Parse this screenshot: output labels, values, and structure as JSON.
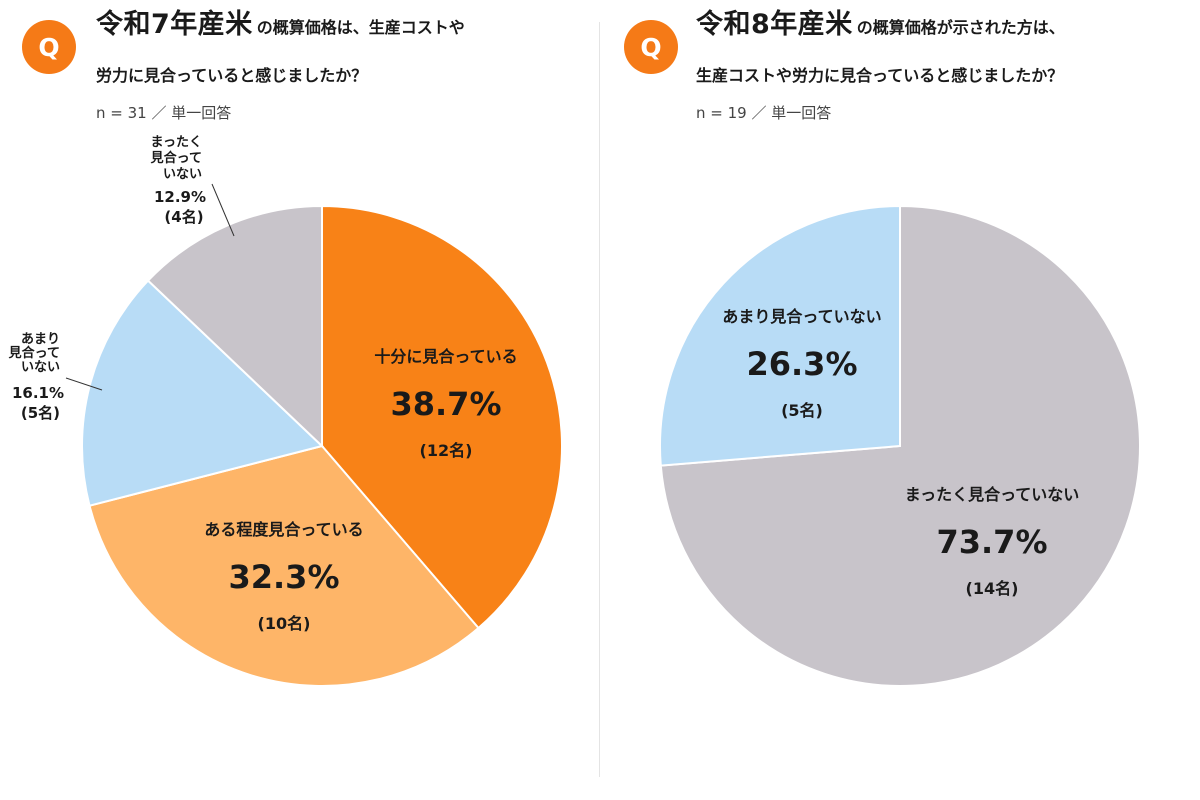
{
  "left": {
    "badge": "Q",
    "title_emph": "令和7年産米",
    "title_rest": "の概算価格は、生産コストや",
    "title_line2": "労力に見合っていると感じましたか？",
    "meta": "n = 31 ／ 単一回答"
  },
  "right": {
    "badge": "Q",
    "title_emph": "令和8年産米",
    "title_rest": "の概算価格が示された方は、",
    "title_line2": "生産コストや労力に見合っていると感じましたか？",
    "meta": "n = 19 ／ 単一回答"
  },
  "chart_data": [
    {
      "type": "pie",
      "title": "",
      "slices": [
        {
          "label": "十分に見合っている",
          "value": 38.7,
          "pct_text": "38.7%",
          "count_text": "(12名)",
          "color": "#f88217",
          "outside": false
        },
        {
          "label": "ある程度見合っている",
          "value": 32.3,
          "pct_text": "32.3%",
          "count_text": "(10名)",
          "color": "#feb568",
          "outside": false
        },
        {
          "label": "あまり見合っていない",
          "label_lines": [
            "あまり",
            "見合って",
            "いない"
          ],
          "value": 16.1,
          "pct_text": "16.1%",
          "count_text": "(5名)",
          "color": "#b8dcf6",
          "outside": true
        },
        {
          "label": "まったく見合っていない",
          "label_lines": [
            "まったく",
            "見合って",
            "いない"
          ],
          "value": 12.9,
          "pct_text": "12.9%",
          "count_text": "(4名)",
          "color": "#c8c4ca",
          "outside": true
        }
      ]
    },
    {
      "type": "pie",
      "title": "",
      "slices": [
        {
          "label": "まったく見合っていない",
          "value": 73.7,
          "pct_text": "73.7%",
          "count_text": "(14名)",
          "color": "#c8c4ca",
          "outside": false
        },
        {
          "label": "あまり見合っていない",
          "value": 26.3,
          "pct_text": "26.3%",
          "count_text": "(5名)",
          "color": "#b8dcf6",
          "outside": false
        }
      ]
    }
  ]
}
